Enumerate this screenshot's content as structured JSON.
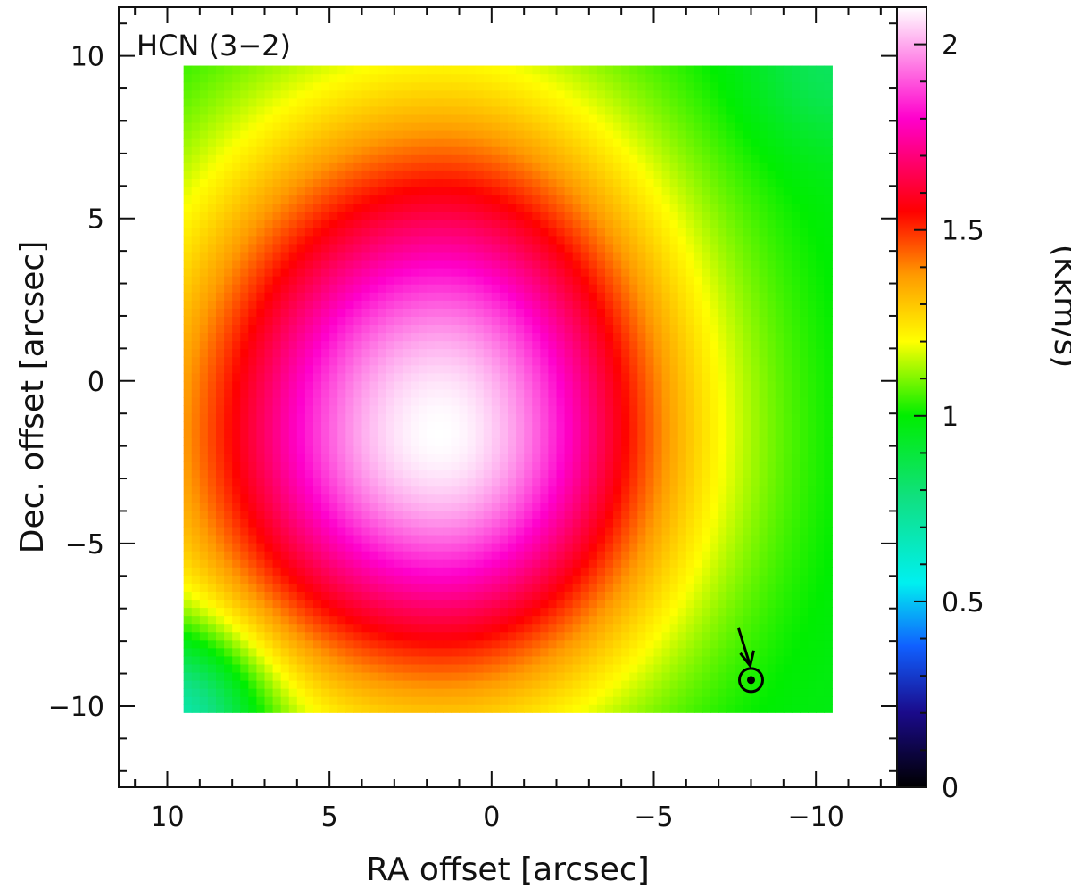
{
  "chart_data": {
    "type": "heatmap",
    "panel_label": "HCN (3−2)",
    "xlabel": "RA offset [arcsec]",
    "ylabel": "Dec. offset [arcsec]",
    "xlim": [
      11.5,
      -12.5
    ],
    "ylim": [
      -12.5,
      11.5
    ],
    "xticks": [
      {
        "value": 10,
        "label": "10"
      },
      {
        "value": 5,
        "label": "5"
      },
      {
        "value": 0,
        "label": "0"
      },
      {
        "value": -5,
        "label": "−5"
      },
      {
        "value": -10,
        "label": "−10"
      }
    ],
    "yticks": [
      {
        "value": 10,
        "label": "10"
      },
      {
        "value": 5,
        "label": "5"
      },
      {
        "value": 0,
        "label": "0"
      },
      {
        "value": -5,
        "label": "−5"
      },
      {
        "value": -10,
        "label": "−10"
      }
    ],
    "map_extent": {
      "x": [
        9.5,
        -10.5
      ],
      "y": [
        -10.2,
        9.7
      ]
    },
    "peak": {
      "x": 1.6,
      "y": -1.6,
      "value": 2.1
    },
    "colorbar": {
      "label": "(Kkm/s)",
      "range": [
        0,
        2.1
      ],
      "ticks": [
        {
          "value": 0,
          "label": "0"
        },
        {
          "value": 0.5,
          "label": "0.5"
        },
        {
          "value": 1,
          "label": "1"
        },
        {
          "value": 1.5,
          "label": "1.5"
        },
        {
          "value": 2,
          "label": "2"
        }
      ],
      "stops": [
        {
          "value": 0.0,
          "color": "#000000"
        },
        {
          "value": 0.2,
          "color": "#1a0a8a"
        },
        {
          "value": 0.38,
          "color": "#1060ff"
        },
        {
          "value": 0.55,
          "color": "#00f0f0"
        },
        {
          "value": 0.78,
          "color": "#10e080"
        },
        {
          "value": 1.0,
          "color": "#00ee00"
        },
        {
          "value": 1.2,
          "color": "#ffff00"
        },
        {
          "value": 1.38,
          "color": "#ff9900"
        },
        {
          "value": 1.55,
          "color": "#ff0000"
        },
        {
          "value": 1.8,
          "color": "#ff00cc"
        },
        {
          "value": 2.1,
          "color": "#ffffff"
        }
      ]
    },
    "marker": {
      "type": "sun-symbol-with-arrow",
      "x": -8,
      "y": -9.2
    }
  }
}
